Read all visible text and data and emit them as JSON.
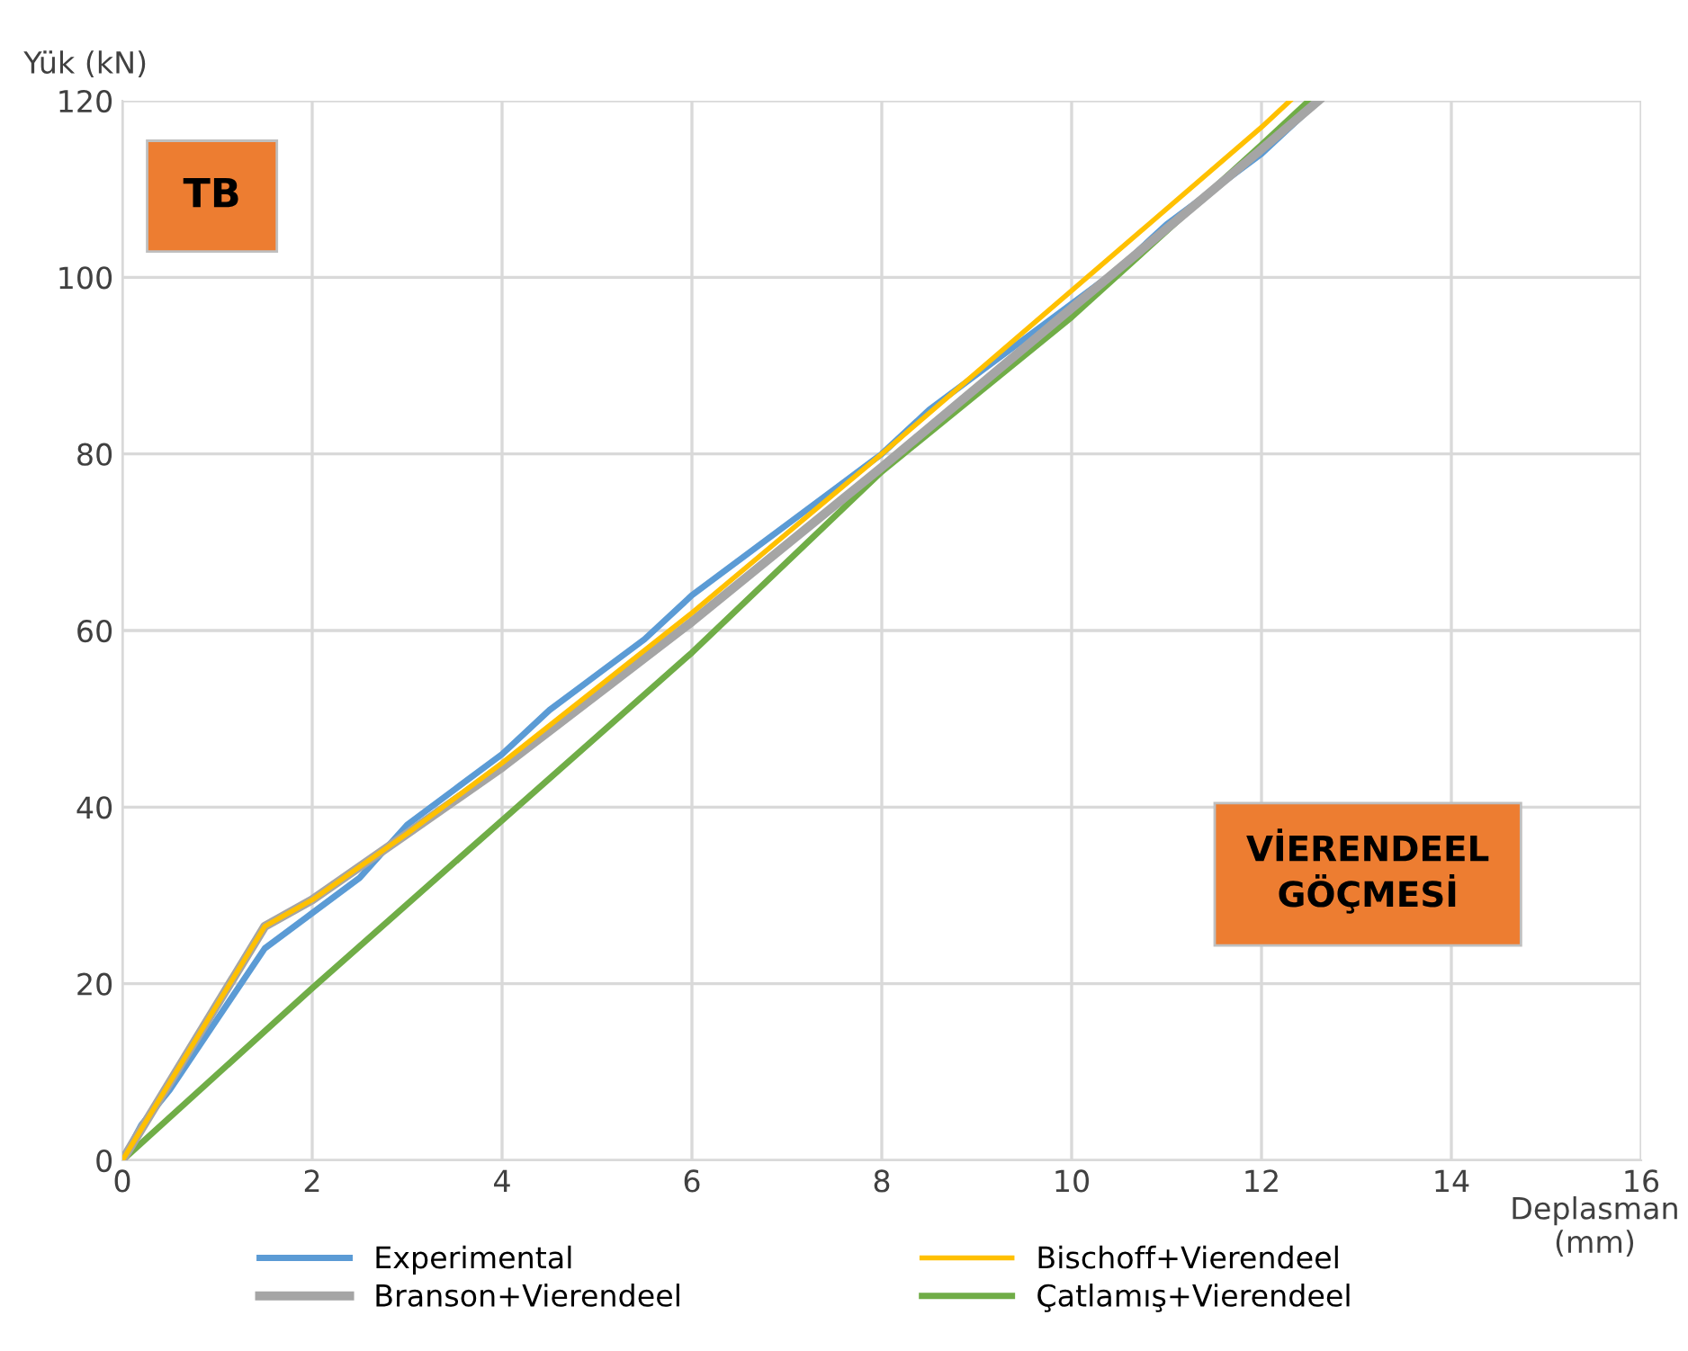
{
  "chart_data": {
    "type": "line",
    "xlabel": "Deplasman\n(mm)",
    "ylabel": "Yük (kN)",
    "xlim": [
      0,
      16
    ],
    "ylim": [
      0,
      120
    ],
    "xticks": [
      0,
      2,
      4,
      6,
      8,
      10,
      12,
      14,
      16
    ],
    "yticks": [
      0,
      20,
      40,
      60,
      80,
      100,
      120
    ],
    "grid": true,
    "legend": "bottom",
    "marker": "none",
    "line_style": "solid",
    "annotations": [
      "TB",
      "VİERENDEEL\nGÖÇMESİ"
    ],
    "series": [
      {
        "name": "Experimental",
        "color": "#5b9bd5",
        "x": [
          0,
          0.2,
          0.5,
          1,
          1.5,
          2,
          2.5,
          3,
          3.5,
          4,
          4.5,
          5,
          5.5,
          6,
          6.5,
          7,
          7.5,
          8,
          8.5,
          9,
          9.5,
          10,
          10.5,
          11,
          11.5,
          12,
          12.3,
          12.6
        ],
        "values": [
          0,
          4,
          8,
          16,
          24,
          28,
          32,
          38,
          42,
          46,
          51,
          55,
          59,
          64,
          68,
          72,
          76,
          80,
          85,
          89,
          93,
          97,
          101,
          106,
          110,
          114,
          117,
          120
        ]
      },
      {
        "name": "Bischoff+Vierendeel",
        "color": "#ffc000",
        "x": [
          0,
          1.5,
          2,
          3,
          4,
          6,
          8,
          10,
          12,
          12.3
        ],
        "values": [
          0,
          26.5,
          29.5,
          37,
          45,
          62,
          80,
          98.5,
          117,
          120
        ]
      },
      {
        "name": "Branson+Vierendeel",
        "color": "#a5a5a5",
        "x": [
          0,
          1.5,
          2,
          3,
          4,
          6,
          8,
          10,
          12,
          12.6
        ],
        "values": [
          0,
          26.5,
          29.5,
          37,
          44.5,
          61,
          78.5,
          96.5,
          114.5,
          120
        ]
      },
      {
        "name": "Çatlamış+Vierendeel",
        "color": "#70ad47",
        "x": [
          0,
          2,
          4,
          6,
          8,
          10,
          12,
          12.5
        ],
        "values": [
          0,
          19.5,
          38.5,
          57.5,
          78,
          95.5,
          115,
          120
        ]
      }
    ]
  }
}
